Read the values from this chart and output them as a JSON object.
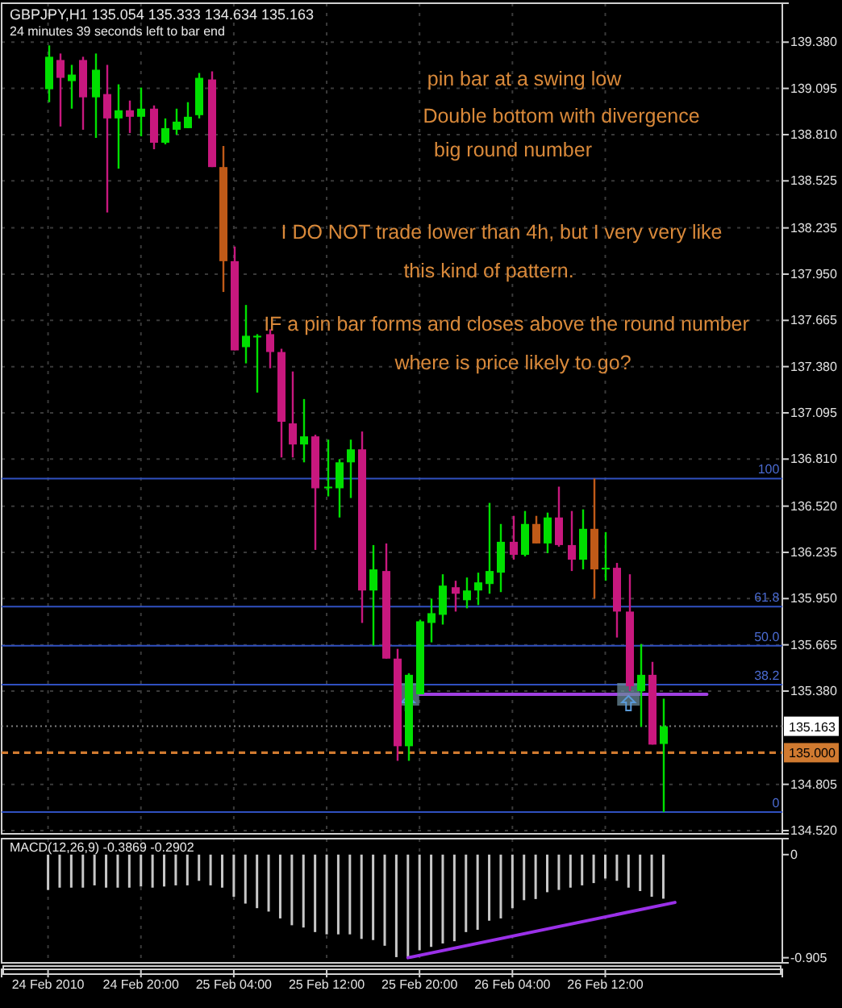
{
  "chart_data": [
    {
      "type": "candlestick",
      "title": "GBPJPY,H1  135.054 135.333 134.634 135.163",
      "subtitle": "24 minutes 39 seconds left to bar end",
      "annotations": [
        "pin bar at a swing low",
        "Double bottom with divergence",
        "big round number",
        "I DO NOT trade lower than 4h, but I very very like",
        "this kind of pattern.",
        "IF a pin bar forms and closes above the round number",
        "where is price likely to go?",
        {
          "text": "100",
          "x": "2010-02-27T03:00",
          "y": 136.69
        },
        {
          "text": "61.8",
          "x": "2010-02-27T03:00",
          "y": 135.9
        },
        {
          "text": "50.0",
          "x": "2010-02-27T03:00",
          "y": 135.66
        },
        {
          "text": "38.2",
          "x": "2010-02-27T03:00",
          "y": 135.42
        },
        {
          "text": "0",
          "x": "2010-02-27T03:00",
          "y": 134.634
        }
      ],
      "x": [
        "2010-02-24T12:00",
        "2010-02-24T13:00",
        "2010-02-24T14:00",
        "2010-02-24T15:00",
        "2010-02-24T16:00",
        "2010-02-24T17:00",
        "2010-02-24T18:00",
        "2010-02-24T19:00",
        "2010-02-24T20:00",
        "2010-02-24T21:00",
        "2010-02-24T22:00",
        "2010-02-24T23:00",
        "2010-02-25T00:00",
        "2010-02-25T01:00",
        "2010-02-25T02:00",
        "2010-02-25T03:00",
        "2010-02-25T04:00",
        "2010-02-25T05:00",
        "2010-02-25T06:00",
        "2010-02-25T07:00",
        "2010-02-25T08:00",
        "2010-02-25T09:00",
        "2010-02-25T10:00",
        "2010-02-25T11:00",
        "2010-02-25T12:00",
        "2010-02-25T13:00",
        "2010-02-25T14:00",
        "2010-02-25T15:00",
        "2010-02-25T16:00",
        "2010-02-25T17:00",
        "2010-02-25T18:00",
        "2010-02-25T19:00",
        "2010-02-25T20:00",
        "2010-02-25T21:00",
        "2010-02-25T22:00",
        "2010-02-25T23:00",
        "2010-02-26T00:00",
        "2010-02-26T01:00",
        "2010-02-26T02:00",
        "2010-02-26T03:00",
        "2010-02-26T04:00",
        "2010-02-26T05:00",
        "2010-02-26T06:00",
        "2010-02-26T07:00",
        "2010-02-26T08:00",
        "2010-02-26T09:00",
        "2010-02-26T10:00",
        "2010-02-26T11:00",
        "2010-02-26T12:00",
        "2010-02-26T13:00",
        "2010-02-26T14:00",
        "2010-02-26T15:00",
        "2010-02-26T16:00",
        "2010-02-26T17:00"
      ],
      "ohlc": [
        [
          139.09,
          139.36,
          139.01,
          139.29
        ],
        [
          139.27,
          139.31,
          138.86,
          139.16
        ],
        [
          139.14,
          139.24,
          138.97,
          139.18
        ],
        [
          139.27,
          139.29,
          138.84,
          139.04
        ],
        [
          139.04,
          139.31,
          138.79,
          139.21
        ],
        [
          139.06,
          139.24,
          138.33,
          138.91
        ],
        [
          138.91,
          139.12,
          138.6,
          138.96
        ],
        [
          138.96,
          139.02,
          138.82,
          138.92
        ],
        [
          138.92,
          139.1,
          138.8,
          138.97
        ],
        [
          138.97,
          138.99,
          138.72,
          138.76
        ],
        [
          138.76,
          138.91,
          138.75,
          138.85
        ],
        [
          138.84,
          138.97,
          138.81,
          138.89
        ],
        [
          138.85,
          139.01,
          138.85,
          138.92
        ],
        [
          138.93,
          139.19,
          138.91,
          139.16
        ],
        [
          139.15,
          139.2,
          138.61,
          138.61
        ],
        [
          138.61,
          138.74,
          137.84,
          138.03
        ],
        [
          138.03,
          138.12,
          137.48,
          137.48
        ],
        [
          137.5,
          137.76,
          137.4,
          137.57
        ],
        [
          137.56,
          137.58,
          137.22,
          137.57
        ],
        [
          137.58,
          137.61,
          137.37,
          137.47
        ],
        [
          137.47,
          137.49,
          136.82,
          137.04
        ],
        [
          137.03,
          137.35,
          136.82,
          136.9
        ],
        [
          136.9,
          137.18,
          136.79,
          136.95
        ],
        [
          136.95,
          136.96,
          136.25,
          136.63
        ],
        [
          136.63,
          136.93,
          136.58,
          136.64
        ],
        [
          136.63,
          136.81,
          136.45,
          136.79
        ],
        [
          136.79,
          136.93,
          136.57,
          136.87
        ],
        [
          136.87,
          136.98,
          135.8,
          136.0
        ],
        [
          136.0,
          136.28,
          135.66,
          136.13
        ],
        [
          136.12,
          136.29,
          135.58,
          135.58
        ],
        [
          135.58,
          135.64,
          134.95,
          135.04
        ],
        [
          135.04,
          135.49,
          134.95,
          135.48
        ],
        [
          135.36,
          135.82,
          135.36,
          135.81
        ],
        [
          135.8,
          135.95,
          135.68,
          135.86
        ],
        [
          135.85,
          136.1,
          135.79,
          136.03
        ],
        [
          136.02,
          136.06,
          135.87,
          135.98
        ],
        [
          135.94,
          136.08,
          135.89,
          136.0
        ],
        [
          136.0,
          136.11,
          135.91,
          136.05
        ],
        [
          136.04,
          136.54,
          135.98,
          136.12
        ],
        [
          136.11,
          136.41,
          135.99,
          136.3
        ],
        [
          136.3,
          136.46,
          136.19,
          136.22
        ],
        [
          136.22,
          136.49,
          136.21,
          136.41
        ],
        [
          136.41,
          136.46,
          136.29,
          136.29
        ],
        [
          136.29,
          136.48,
          136.23,
          136.45
        ],
        [
          136.45,
          136.64,
          136.27,
          136.28
        ],
        [
          136.28,
          136.49,
          136.12,
          136.19
        ],
        [
          136.19,
          136.5,
          136.13,
          136.38
        ],
        [
          136.38,
          136.69,
          135.95,
          136.13
        ],
        [
          136.13,
          136.36,
          136.06,
          136.14
        ],
        [
          136.14,
          136.17,
          135.71,
          135.87
        ],
        [
          135.87,
          136.1,
          135.38,
          135.41
        ],
        [
          135.38,
          135.67,
          135.16,
          135.48
        ],
        [
          135.48,
          135.56,
          135.05,
          135.05
        ],
        [
          135.054,
          135.333,
          134.634,
          135.163
        ]
      ],
      "colors": [
        "#00e000",
        "#c8187e",
        "#00e000",
        "#c8187e",
        "#00e000",
        "#c8187e",
        "#00e000",
        "#c8187e",
        "#00e000",
        "#c8187e",
        "#00e000",
        "#00e000",
        "#00e000",
        "#00e000",
        "#c8187e",
        "#c05a18",
        "#c8187e",
        "#00e000",
        "#00e000",
        "#c8187e",
        "#c8187e",
        "#c8187e",
        "#00e000",
        "#c8187e",
        "#00e000",
        "#00e000",
        "#00e000",
        "#c8187e",
        "#00e000",
        "#c8187e",
        "#c8187e",
        "#00e000",
        "#00e000",
        "#00e000",
        "#00e000",
        "#c8187e",
        "#00e000",
        "#00e000",
        "#00e000",
        "#00e000",
        "#c8187e",
        "#00e000",
        "#c05a18",
        "#00e000",
        "#c8187e",
        "#c8187e",
        "#00e000",
        "#c05a18",
        "#00e000",
        "#c8187e",
        "#c8187e",
        "#00e000",
        "#c8187e",
        "#00e000"
      ],
      "series": [
        {
          "type": "line",
          "x": [
            "2010-02-25T20:00",
            "2010-02-26T20:45"
          ],
          "values": [
            135.36,
            135.36
          ],
          "color": "#a040e0"
        }
      ],
      "ref_lines": [
        {
          "axis": "y",
          "value": 136.69,
          "color": "#3050c0",
          "line_style": "solid"
        },
        {
          "axis": "y",
          "value": 135.9,
          "color": "#3050c0",
          "line_style": "solid"
        },
        {
          "axis": "y",
          "value": 135.66,
          "color": "#3050c0",
          "line_style": "solid"
        },
        {
          "axis": "y",
          "value": 135.42,
          "color": "#3050c0",
          "line_style": "solid"
        },
        {
          "axis": "y",
          "value": 134.634,
          "color": "#3050c0",
          "line_style": "solid"
        },
        {
          "axis": "y",
          "value": 135.163,
          "label": "135.163",
          "color": "#808080",
          "line_style": "dotted"
        },
        {
          "axis": "y",
          "value": 135,
          "label": "135.000",
          "color": "#d07a30",
          "line_style": "dashed"
        }
      ],
      "xlim": [
        "2010-02-24T08:00",
        "2010-02-27T03:15"
      ],
      "xticks": [
        {
          "value": "2010-02-24T12:00",
          "label": null
        },
        {
          "value": "2010-02-24T20:00",
          "label": null
        },
        {
          "value": "2010-02-25T04:00",
          "label": null
        },
        {
          "value": "2010-02-25T12:00",
          "label": null
        },
        {
          "value": "2010-02-25T20:00",
          "label": null
        },
        {
          "value": "2010-02-26T04:00",
          "label": null
        },
        {
          "value": "2010-02-26T12:00",
          "label": null
        }
      ],
      "ylim": [
        134.5,
        139.62
      ],
      "yticks": [
        {
          "value": 139.38,
          "label": "139.380"
        },
        {
          "value": 139.095,
          "label": "139.095"
        },
        {
          "value": 138.81,
          "label": "138.810"
        },
        {
          "value": 138.525,
          "label": "138.525"
        },
        {
          "value": 138.235,
          "label": "138.235"
        },
        {
          "value": 137.95,
          "label": "137.950"
        },
        {
          "value": 137.665,
          "label": "137.665"
        },
        {
          "value": 137.38,
          "label": "137.380"
        },
        {
          "value": 137.095,
          "label": "137.095"
        },
        {
          "value": 136.81,
          "label": "136.810"
        },
        {
          "value": 136.52,
          "label": "136.520"
        },
        {
          "value": 136.235,
          "label": "136.235"
        },
        {
          "value": 135.95,
          "label": "135.950"
        },
        {
          "value": 135.665,
          "label": "135.665"
        },
        {
          "value": 135.38,
          "label": "135.380"
        },
        {
          "value": 134.805,
          "label": "134.805"
        },
        {
          "value": 134.52,
          "label": "134.520"
        }
      ],
      "grid": true,
      "tick_labels": "y"
    },
    {
      "type": "bar",
      "title": "MACD(12,26,9) -0.3869 -0.2902",
      "x": [
        "2010-02-24T12:00",
        "2010-02-24T13:00",
        "2010-02-24T14:00",
        "2010-02-24T15:00",
        "2010-02-24T16:00",
        "2010-02-24T17:00",
        "2010-02-24T18:00",
        "2010-02-24T19:00",
        "2010-02-24T20:00",
        "2010-02-24T21:00",
        "2010-02-24T22:00",
        "2010-02-24T23:00",
        "2010-02-25T00:00",
        "2010-02-25T01:00",
        "2010-02-25T02:00",
        "2010-02-25T03:00",
        "2010-02-25T04:00",
        "2010-02-25T05:00",
        "2010-02-25T06:00",
        "2010-02-25T07:00",
        "2010-02-25T08:00",
        "2010-02-25T09:00",
        "2010-02-25T10:00",
        "2010-02-25T11:00",
        "2010-02-25T12:00",
        "2010-02-25T13:00",
        "2010-02-25T14:00",
        "2010-02-25T15:00",
        "2010-02-25T16:00",
        "2010-02-25T17:00",
        "2010-02-25T18:00",
        "2010-02-25T19:00",
        "2010-02-25T20:00",
        "2010-02-25T21:00",
        "2010-02-25T22:00",
        "2010-02-25T23:00",
        "2010-02-26T00:00",
        "2010-02-26T01:00",
        "2010-02-26T02:00",
        "2010-02-26T03:00",
        "2010-02-26T04:00",
        "2010-02-26T05:00",
        "2010-02-26T06:00",
        "2010-02-26T07:00",
        "2010-02-26T08:00",
        "2010-02-26T09:00",
        "2010-02-26T10:00",
        "2010-02-26T11:00",
        "2010-02-26T12:00",
        "2010-02-26T13:00",
        "2010-02-26T14:00",
        "2010-02-26T15:00",
        "2010-02-26T16:00",
        "2010-02-26T17:00"
      ],
      "series": [
        {
          "type": "bar",
          "color": "#c8c8c8",
          "values": [
            -0.31,
            -0.29,
            -0.29,
            -0.29,
            -0.27,
            -0.29,
            -0.29,
            -0.29,
            -0.28,
            -0.29,
            -0.28,
            -0.27,
            -0.27,
            -0.23,
            -0.27,
            -0.29,
            -0.37,
            -0.43,
            -0.47,
            -0.5,
            -0.56,
            -0.62,
            -0.64,
            -0.68,
            -0.7,
            -0.7,
            -0.7,
            -0.74,
            -0.75,
            -0.8,
            -0.9,
            -0.905,
            -0.84,
            -0.81,
            -0.78,
            -0.76,
            -0.68,
            -0.66,
            -0.58,
            -0.56,
            -0.47,
            -0.4,
            -0.39,
            -0.33,
            -0.31,
            -0.29,
            -0.27,
            -0.25,
            -0.21,
            -0.23,
            -0.29,
            -0.32,
            -0.37,
            -0.3869
          ]
        },
        {
          "type": "line",
          "x": [
            "2010-02-25T19:00",
            "2010-02-26T18:00"
          ],
          "values": [
            -0.905,
            -0.42
          ],
          "color": "#9a30e8"
        }
      ],
      "xlim": [
        "2010-02-24T08:00",
        "2010-02-27T03:15"
      ],
      "xticks": [
        {
          "value": "2010-02-24T12:00",
          "label": "24 Feb 2010"
        },
        {
          "value": "2010-02-24T20:00",
          "label": "24 Feb 20:00"
        },
        {
          "value": "2010-02-25T04:00",
          "label": "25 Feb 04:00"
        },
        {
          "value": "2010-02-25T12:00",
          "label": "25 Feb 12:00"
        },
        {
          "value": "2010-02-25T20:00",
          "label": "25 Feb 20:00"
        },
        {
          "value": "2010-02-26T04:00",
          "label": "26 Feb 04:00"
        },
        {
          "value": "2010-02-26T12:00",
          "label": "26 Feb 12:00"
        }
      ],
      "ylim": [
        -0.95,
        0.14
      ],
      "yticks": [
        0,
        -0.905
      ],
      "grid": "x"
    }
  ]
}
